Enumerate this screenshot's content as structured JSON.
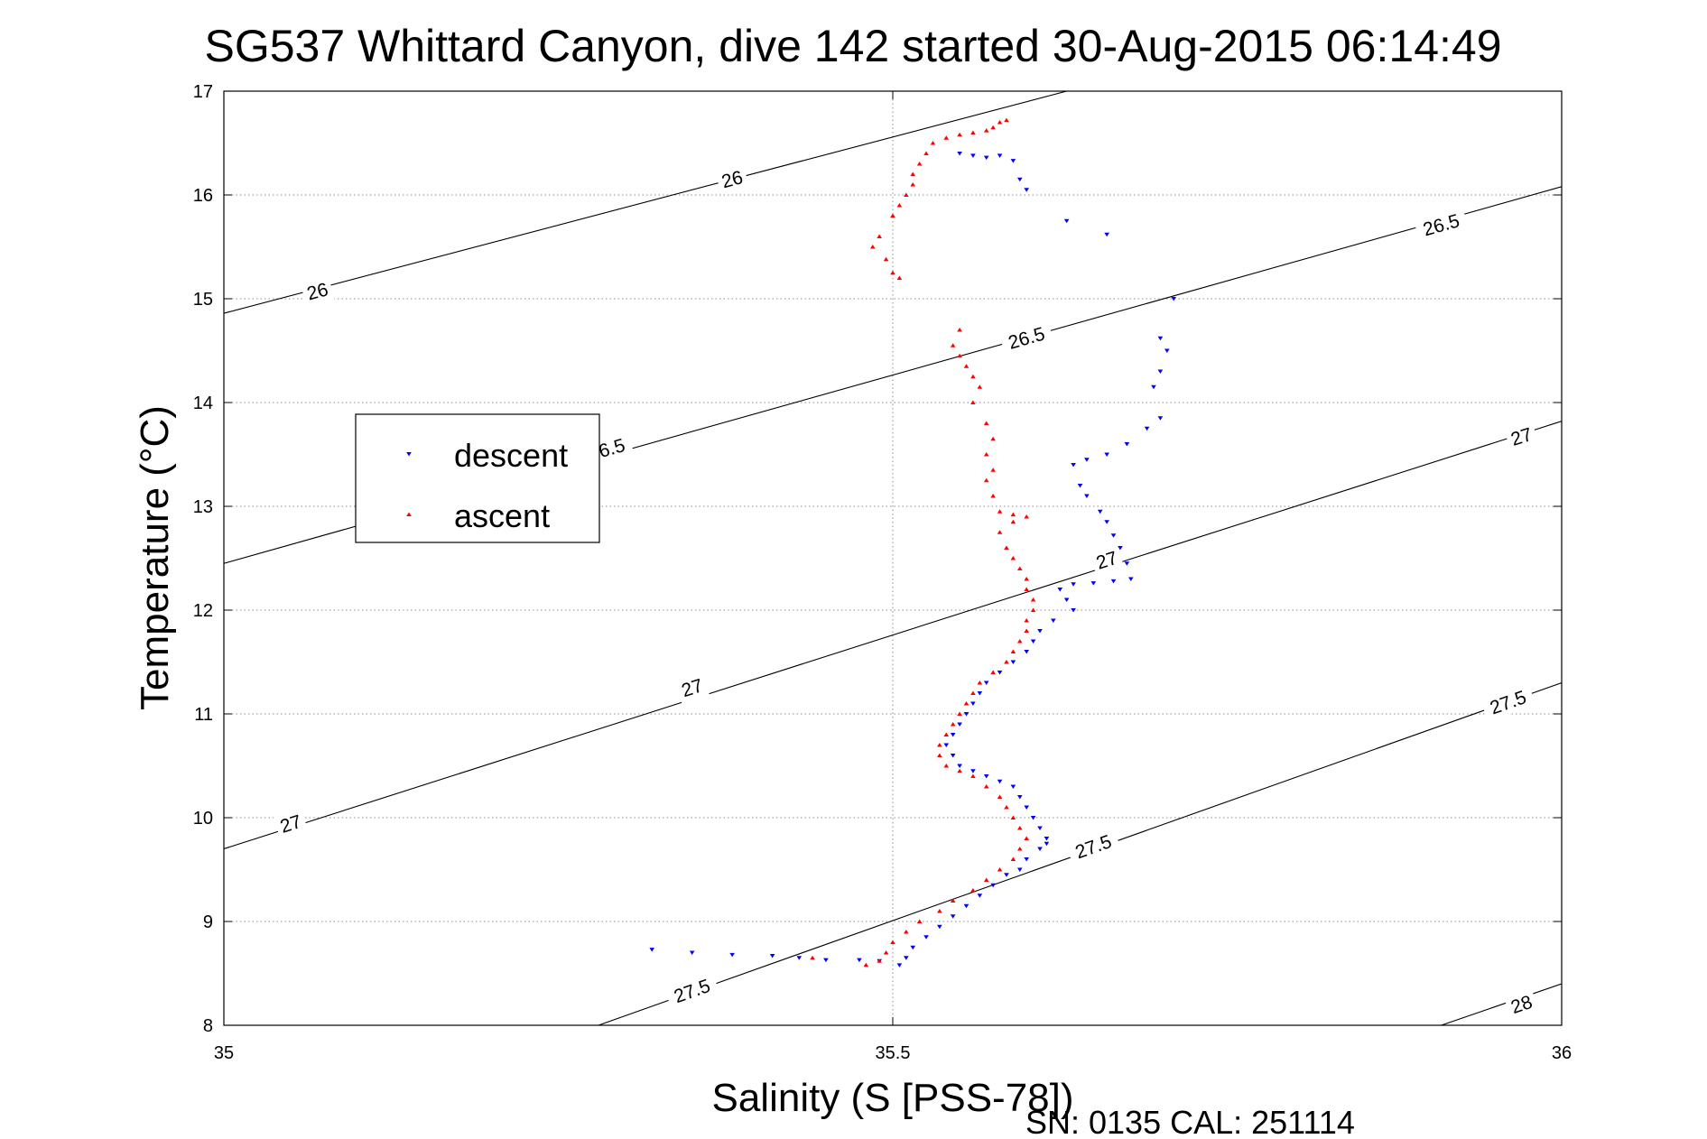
{
  "chart_data": {
    "type": "scatter",
    "title": "SG537 Whittard Canyon, dive 142 started 30-Aug-2015 06:14:49",
    "xlabel": "Salinity (S [PSS-78])",
    "ylabel": "Temperature (°C)",
    "xlim": [
      35,
      36
    ],
    "ylim": [
      8,
      17
    ],
    "x_ticks": [
      "35",
      "35.5",
      "36"
    ],
    "y_ticks": [
      "8",
      "9",
      "10",
      "11",
      "12",
      "13",
      "14",
      "15",
      "16",
      "17"
    ],
    "grid": true,
    "legend_position": "left-middle",
    "footer": "SN: 0135  CAL: 251114",
    "density_contours": [
      {
        "level": "26",
        "points": [
          [
            35,
            14.86
          ],
          [
            35.63,
            17.0
          ]
        ],
        "labels": [
          {
            "text": "26",
            "at": [
              35.07,
              15.07
            ]
          },
          {
            "text": "26",
            "at": [
              35.38,
              16.15
            ]
          }
        ]
      },
      {
        "level": "26.5",
        "points": [
          [
            35,
            12.45
          ],
          [
            36,
            16.08
          ]
        ],
        "labels": [
          {
            "text": "6.5",
            "at": [
              35.29,
              13.56
            ]
          },
          {
            "text": "26.5",
            "at": [
              35.6,
              14.62
            ]
          },
          {
            "text": "26.5",
            "at": [
              35.91,
              15.71
            ]
          }
        ]
      },
      {
        "level": "27",
        "points": [
          [
            35,
            9.7
          ],
          [
            36,
            13.82
          ]
        ],
        "labels": [
          {
            "text": "27",
            "at": [
              35.05,
              9.94
            ]
          },
          {
            "text": "27",
            "at": [
              35.35,
              11.25
            ]
          },
          {
            "text": "27",
            "at": [
              35.66,
              12.48
            ]
          },
          {
            "text": "27",
            "at": [
              35.97,
              13.67
            ]
          }
        ]
      },
      {
        "level": "27.5",
        "points": [
          [
            35.28,
            8.0
          ],
          [
            36,
            11.3
          ]
        ],
        "labels": [
          {
            "text": "27.5",
            "at": [
              35.35,
              8.33
            ]
          },
          {
            "text": "27.5",
            "at": [
              35.65,
              9.72
            ]
          },
          {
            "text": "27.5",
            "at": [
              35.96,
              11.11
            ]
          }
        ]
      },
      {
        "level": "28",
        "points": [
          [
            35.91,
            8.0
          ],
          [
            36,
            8.4
          ]
        ],
        "labels": [
          {
            "text": "28",
            "at": [
              35.97,
              8.2
            ]
          }
        ]
      }
    ],
    "series": [
      {
        "name": "descent",
        "color": "#0000ff",
        "marker": "triangle-down",
        "points": [
          [
            35.55,
            16.4
          ],
          [
            35.56,
            16.38
          ],
          [
            35.57,
            16.36
          ],
          [
            35.58,
            16.38
          ],
          [
            35.59,
            16.33
          ],
          [
            35.595,
            16.15
          ],
          [
            35.6,
            16.05
          ],
          [
            35.63,
            15.75
          ],
          [
            35.66,
            15.62
          ],
          [
            35.71,
            15.0
          ],
          [
            35.7,
            14.62
          ],
          [
            35.705,
            14.5
          ],
          [
            35.7,
            14.3
          ],
          [
            35.695,
            14.15
          ],
          [
            35.7,
            13.85
          ],
          [
            35.69,
            13.75
          ],
          [
            35.675,
            13.6
          ],
          [
            35.66,
            13.5
          ],
          [
            35.645,
            13.45
          ],
          [
            35.635,
            13.4
          ],
          [
            35.64,
            13.2
          ],
          [
            35.645,
            13.1
          ],
          [
            35.655,
            12.95
          ],
          [
            35.66,
            12.85
          ],
          [
            35.665,
            12.72
          ],
          [
            35.67,
            12.6
          ],
          [
            35.675,
            12.45
          ],
          [
            35.678,
            12.3
          ],
          [
            35.665,
            12.28
          ],
          [
            35.65,
            12.26
          ],
          [
            35.635,
            12.25
          ],
          [
            35.625,
            12.2
          ],
          [
            35.63,
            12.1
          ],
          [
            35.635,
            12.0
          ],
          [
            35.62,
            11.9
          ],
          [
            35.61,
            11.8
          ],
          [
            35.605,
            11.7
          ],
          [
            35.6,
            11.6
          ],
          [
            35.59,
            11.5
          ],
          [
            35.58,
            11.4
          ],
          [
            35.57,
            11.3
          ],
          [
            35.565,
            11.2
          ],
          [
            35.56,
            11.1
          ],
          [
            35.555,
            11.0
          ],
          [
            35.55,
            10.9
          ],
          [
            35.545,
            10.8
          ],
          [
            35.54,
            10.7
          ],
          [
            35.545,
            10.6
          ],
          [
            35.55,
            10.5
          ],
          [
            35.56,
            10.45
          ],
          [
            35.57,
            10.4
          ],
          [
            35.58,
            10.35
          ],
          [
            35.59,
            10.3
          ],
          [
            35.595,
            10.2
          ],
          [
            35.6,
            10.1
          ],
          [
            35.605,
            10.0
          ],
          [
            35.61,
            9.9
          ],
          [
            35.615,
            9.8
          ],
          [
            35.615,
            9.75
          ],
          [
            35.61,
            9.7
          ],
          [
            35.6,
            9.6
          ],
          [
            35.595,
            9.5
          ],
          [
            35.585,
            9.45
          ],
          [
            35.575,
            9.35
          ],
          [
            35.565,
            9.25
          ],
          [
            35.555,
            9.15
          ],
          [
            35.545,
            9.05
          ],
          [
            35.535,
            8.95
          ],
          [
            35.525,
            8.85
          ],
          [
            35.515,
            8.75
          ],
          [
            35.51,
            8.65
          ],
          [
            35.505,
            8.58
          ],
          [
            35.49,
            8.62
          ],
          [
            35.475,
            8.63
          ],
          [
            35.45,
            8.63
          ],
          [
            35.43,
            8.65
          ],
          [
            35.41,
            8.67
          ],
          [
            35.38,
            8.68
          ],
          [
            35.35,
            8.7
          ],
          [
            35.32,
            8.73
          ]
        ]
      },
      {
        "name": "ascent",
        "color": "#ff0000",
        "marker": "triangle-up",
        "points": [
          [
            35.585,
            16.72
          ],
          [
            35.58,
            16.7
          ],
          [
            35.575,
            16.65
          ],
          [
            35.57,
            16.62
          ],
          [
            35.56,
            16.6
          ],
          [
            35.55,
            16.58
          ],
          [
            35.54,
            16.55
          ],
          [
            35.53,
            16.5
          ],
          [
            35.525,
            16.4
          ],
          [
            35.52,
            16.3
          ],
          [
            35.515,
            16.2
          ],
          [
            35.515,
            16.1
          ],
          [
            35.51,
            16.0
          ],
          [
            35.505,
            15.9
          ],
          [
            35.5,
            15.8
          ],
          [
            35.49,
            15.6
          ],
          [
            35.485,
            15.5
          ],
          [
            35.495,
            15.38
          ],
          [
            35.5,
            15.25
          ],
          [
            35.505,
            15.2
          ],
          [
            35.55,
            14.7
          ],
          [
            35.545,
            14.55
          ],
          [
            35.55,
            14.45
          ],
          [
            35.555,
            14.35
          ],
          [
            35.56,
            14.25
          ],
          [
            35.565,
            14.15
          ],
          [
            35.56,
            14.0
          ],
          [
            35.57,
            13.8
          ],
          [
            35.575,
            13.65
          ],
          [
            35.57,
            13.5
          ],
          [
            35.575,
            13.35
          ],
          [
            35.57,
            13.25
          ],
          [
            35.575,
            13.1
          ],
          [
            35.58,
            12.95
          ],
          [
            35.59,
            12.92
          ],
          [
            35.6,
            12.9
          ],
          [
            35.59,
            12.85
          ],
          [
            35.58,
            12.75
          ],
          [
            35.585,
            12.6
          ],
          [
            35.59,
            12.5
          ],
          [
            35.595,
            12.4
          ],
          [
            35.6,
            12.3
          ],
          [
            35.6,
            12.2
          ],
          [
            35.605,
            12.1
          ],
          [
            35.605,
            12.0
          ],
          [
            35.6,
            11.9
          ],
          [
            35.6,
            11.8
          ],
          [
            35.595,
            11.7
          ],
          [
            35.59,
            11.6
          ],
          [
            35.585,
            11.5
          ],
          [
            35.575,
            11.4
          ],
          [
            35.565,
            11.3
          ],
          [
            35.56,
            11.2
          ],
          [
            35.555,
            11.1
          ],
          [
            35.55,
            11.0
          ],
          [
            35.545,
            10.9
          ],
          [
            35.54,
            10.8
          ],
          [
            35.535,
            10.7
          ],
          [
            35.535,
            10.6
          ],
          [
            35.54,
            10.5
          ],
          [
            35.55,
            10.45
          ],
          [
            35.56,
            10.4
          ],
          [
            35.57,
            10.3
          ],
          [
            35.58,
            10.2
          ],
          [
            35.585,
            10.1
          ],
          [
            35.59,
            10.0
          ],
          [
            35.595,
            9.9
          ],
          [
            35.6,
            9.8
          ],
          [
            35.595,
            9.7
          ],
          [
            35.59,
            9.6
          ],
          [
            35.58,
            9.5
          ],
          [
            35.57,
            9.4
          ],
          [
            35.56,
            9.3
          ],
          [
            35.545,
            9.2
          ],
          [
            35.535,
            9.1
          ],
          [
            35.52,
            9.0
          ],
          [
            35.51,
            8.9
          ],
          [
            35.5,
            8.8
          ],
          [
            35.495,
            8.7
          ],
          [
            35.49,
            8.62
          ],
          [
            35.48,
            8.58
          ],
          [
            35.44,
            8.65
          ]
        ]
      }
    ]
  }
}
